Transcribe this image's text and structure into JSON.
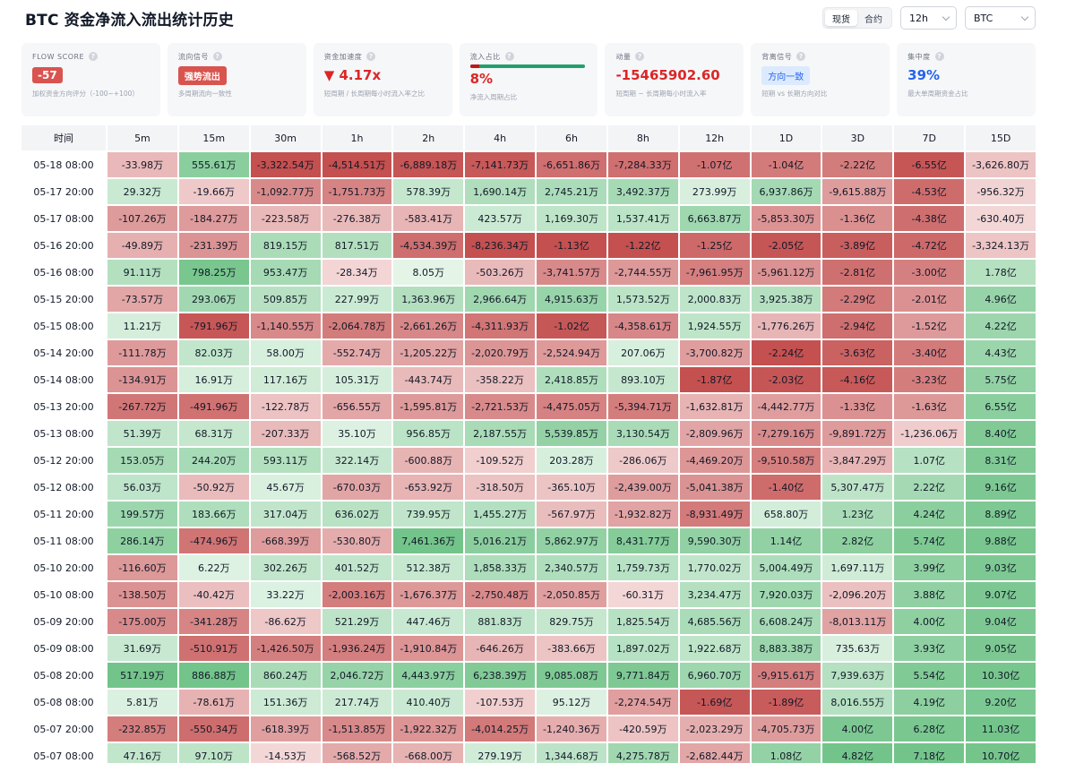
{
  "header": {
    "title": "BTC 资金净流入流出统计历史",
    "toggle": [
      "现货",
      "合约"
    ],
    "toggle_active": 0,
    "interval": "12h",
    "symbol": "BTC"
  },
  "metrics": [
    {
      "label": "FLOW SCORE",
      "value": "-57",
      "style": "badge-red",
      "sub": "加权资金方向评分（-100~+100）"
    },
    {
      "label": "流向信号",
      "value": "强势流出",
      "style": "badge-red-lg",
      "sub": "多周期流向一致性"
    },
    {
      "label": "资金加速度",
      "value": "▼ 4.17x",
      "style": "val-red",
      "sub": "短周期 / 长周期每小时流入率之比"
    },
    {
      "label": "流入占比",
      "value": "8%",
      "style": "val-red",
      "sub": "净流入周期占比",
      "progress": 0.08
    },
    {
      "label": "动量",
      "value": "-15465902.60",
      "style": "val-red",
      "sub": "短周期 − 长周期每小时流入率"
    },
    {
      "label": "背离信号",
      "value": "方向一致",
      "style": "badge-blue",
      "sub": "短期 vs 长期方向对比"
    },
    {
      "label": "集中度",
      "value": "39%",
      "style": "val-blue",
      "sub": "最大单周期资金占比"
    }
  ],
  "colors": {
    "positive": "#22a06b",
    "negative": "#c0392b",
    "header_bg": "#f3f4f6"
  },
  "table": {
    "columns": [
      "时间",
      "5m",
      "15m",
      "30m",
      "1h",
      "2h",
      "4h",
      "6h",
      "8h",
      "12h",
      "1D",
      "3D",
      "7D",
      "15D"
    ],
    "rows": [
      [
        "05-18 08:00",
        "-33.98万",
        "555.61万",
        "-3,322.54万",
        "-4,514.51万",
        "-6,889.18万",
        "-7,141.73万",
        "-6,651.86万",
        "-7,284.33万",
        "-1.07亿",
        "-1.04亿",
        "-2.22亿",
        "-6.55亿",
        "-3,626.80万"
      ],
      [
        "05-17 20:00",
        "29.32万",
        "-19.66万",
        "-1,092.77万",
        "-1,751.73万",
        "578.39万",
        "1,690.14万",
        "2,745.21万",
        "3,492.37万",
        "273.99万",
        "6,937.86万",
        "-9,615.88万",
        "-4.53亿",
        "-956.32万"
      ],
      [
        "05-17 08:00",
        "-107.26万",
        "-184.27万",
        "-223.58万",
        "-276.38万",
        "-583.41万",
        "423.57万",
        "1,169.30万",
        "1,537.41万",
        "6,663.87万",
        "-5,853.30万",
        "-1.36亿",
        "-4.38亿",
        "-630.40万"
      ],
      [
        "05-16 20:00",
        "-49.89万",
        "-231.39万",
        "819.15万",
        "817.51万",
        "-4,534.39万",
        "-8,236.34万",
        "-1.13亿",
        "-1.22亿",
        "-1.25亿",
        "-2.05亿",
        "-3.89亿",
        "-4.72亿",
        "-3,324.13万"
      ],
      [
        "05-16 08:00",
        "91.11万",
        "798.25万",
        "953.47万",
        "-28.34万",
        "8.05万",
        "-503.26万",
        "-3,741.57万",
        "-2,744.55万",
        "-7,961.95万",
        "-5,961.12万",
        "-2.81亿",
        "-3.00亿",
        "1.78亿"
      ],
      [
        "05-15 20:00",
        "-73.57万",
        "293.06万",
        "509.85万",
        "227.99万",
        "1,363.96万",
        "2,966.64万",
        "4,915.63万",
        "1,573.52万",
        "2,000.83万",
        "3,925.38万",
        "-2.29亿",
        "-2.01亿",
        "4.96亿"
      ],
      [
        "05-15 08:00",
        "11.21万",
        "-791.96万",
        "-1,140.55万",
        "-2,064.78万",
        "-2,661.26万",
        "-4,311.93万",
        "-1.02亿",
        "-4,358.61万",
        "1,924.55万",
        "-1,776.26万",
        "-2.94亿",
        "-1.52亿",
        "4.22亿"
      ],
      [
        "05-14 20:00",
        "-111.78万",
        "82.03万",
        "58.00万",
        "-552.74万",
        "-1,205.22万",
        "-2,020.79万",
        "-2,524.94万",
        "207.06万",
        "-3,700.82万",
        "-2.24亿",
        "-3.63亿",
        "-3.40亿",
        "4.43亿"
      ],
      [
        "05-14 08:00",
        "-134.91万",
        "16.91万",
        "117.16万",
        "105.31万",
        "-443.74万",
        "-358.22万",
        "2,418.85万",
        "893.10万",
        "-1.87亿",
        "-2.03亿",
        "-4.16亿",
        "-3.23亿",
        "5.75亿"
      ],
      [
        "05-13 20:00",
        "-267.72万",
        "-491.96万",
        "-122.78万",
        "-656.55万",
        "-1,595.81万",
        "-2,721.53万",
        "-4,475.05万",
        "-5,394.71万",
        "-1,632.81万",
        "-4,442.77万",
        "-1.33亿",
        "-1.63亿",
        "6.55亿"
      ],
      [
        "05-13 08:00",
        "51.39万",
        "68.31万",
        "-207.33万",
        "35.10万",
        "956.85万",
        "2,187.55万",
        "5,539.85万",
        "3,130.54万",
        "-2,809.96万",
        "-7,279.16万",
        "-9,891.72万",
        "-1,236.06万",
        "8.40亿"
      ],
      [
        "05-12 20:00",
        "153.05万",
        "244.20万",
        "593.11万",
        "322.14万",
        "-600.88万",
        "-109.52万",
        "203.28万",
        "-286.06万",
        "-4,469.20万",
        "-9,510.58万",
        "-3,847.29万",
        "1.07亿",
        "8.31亿"
      ],
      [
        "05-12 08:00",
        "56.03万",
        "-50.92万",
        "45.67万",
        "-670.03万",
        "-653.92万",
        "-318.50万",
        "-365.10万",
        "-2,439.00万",
        "-5,041.38万",
        "-1.40亿",
        "5,307.47万",
        "2.22亿",
        "9.16亿"
      ],
      [
        "05-11 20:00",
        "199.57万",
        "183.66万",
        "317.04万",
        "636.02万",
        "739.95万",
        "1,455.27万",
        "-567.97万",
        "-1,932.82万",
        "-8,931.49万",
        "658.80万",
        "1.23亿",
        "4.24亿",
        "8.89亿"
      ],
      [
        "05-11 08:00",
        "286.14万",
        "-474.96万",
        "-668.39万",
        "-530.80万",
        "7,461.36万",
        "5,016.21万",
        "5,862.97万",
        "8,431.77万",
        "9,590.30万",
        "1.14亿",
        "2.82亿",
        "5.74亿",
        "9.88亿"
      ],
      [
        "05-10 20:00",
        "-116.60万",
        "6.22万",
        "302.26万",
        "401.52万",
        "512.38万",
        "1,858.33万",
        "2,340.57万",
        "1,759.73万",
        "1,770.02万",
        "5,004.49万",
        "1,697.11万",
        "3.99亿",
        "9.03亿"
      ],
      [
        "05-10 08:00",
        "-138.50万",
        "-40.42万",
        "33.22万",
        "-2,003.16万",
        "-1,676.37万",
        "-2,750.48万",
        "-2,050.85万",
        "-60.31万",
        "3,234.47万",
        "7,920.03万",
        "-2,096.20万",
        "3.88亿",
        "9.07亿"
      ],
      [
        "05-09 20:00",
        "-175.00万",
        "-341.28万",
        "-86.62万",
        "521.29万",
        "447.46万",
        "881.83万",
        "829.75万",
        "1,825.54万",
        "4,685.56万",
        "6,608.24万",
        "-8,013.11万",
        "4.00亿",
        "9.04亿"
      ],
      [
        "05-09 08:00",
        "31.69万",
        "-510.91万",
        "-1,426.50万",
        "-1,936.24万",
        "-1,910.84万",
        "-646.26万",
        "-383.66万",
        "1,897.02万",
        "1,922.68万",
        "8,883.38万",
        "735.63万",
        "3.93亿",
        "9.05亿"
      ],
      [
        "05-08 20:00",
        "517.19万",
        "886.88万",
        "860.24万",
        "2,046.72万",
        "4,443.97万",
        "6,238.39万",
        "9,085.08万",
        "9,771.84万",
        "6,960.70万",
        "-9,915.61万",
        "7,939.63万",
        "5.54亿",
        "10.30亿"
      ],
      [
        "05-08 08:00",
        "5.81万",
        "-78.61万",
        "151.36万",
        "217.74万",
        "410.40万",
        "-107.53万",
        "95.12万",
        "-2,274.54万",
        "-1.69亿",
        "-1.89亿",
        "8,016.55万",
        "4.19亿",
        "9.20亿"
      ],
      [
        "05-07 20:00",
        "-232.85万",
        "-550.34万",
        "-618.39万",
        "-1,513.85万",
        "-1,922.32万",
        "-4,014.25万",
        "-1,240.36万",
        "-420.59万",
        "-2,023.29万",
        "-4,705.73万",
        "4.00亿",
        "6.28亿",
        "11.03亿"
      ],
      [
        "05-07 08:00",
        "47.16万",
        "97.10万",
        "-14.53万",
        "-568.52万",
        "-668.00万",
        "279.19万",
        "1,344.68万",
        "4,275.78万",
        "-2,682.44万",
        "1.08亿",
        "4.82亿",
        "7.18亿",
        "10.70亿"
      ]
    ]
  }
}
